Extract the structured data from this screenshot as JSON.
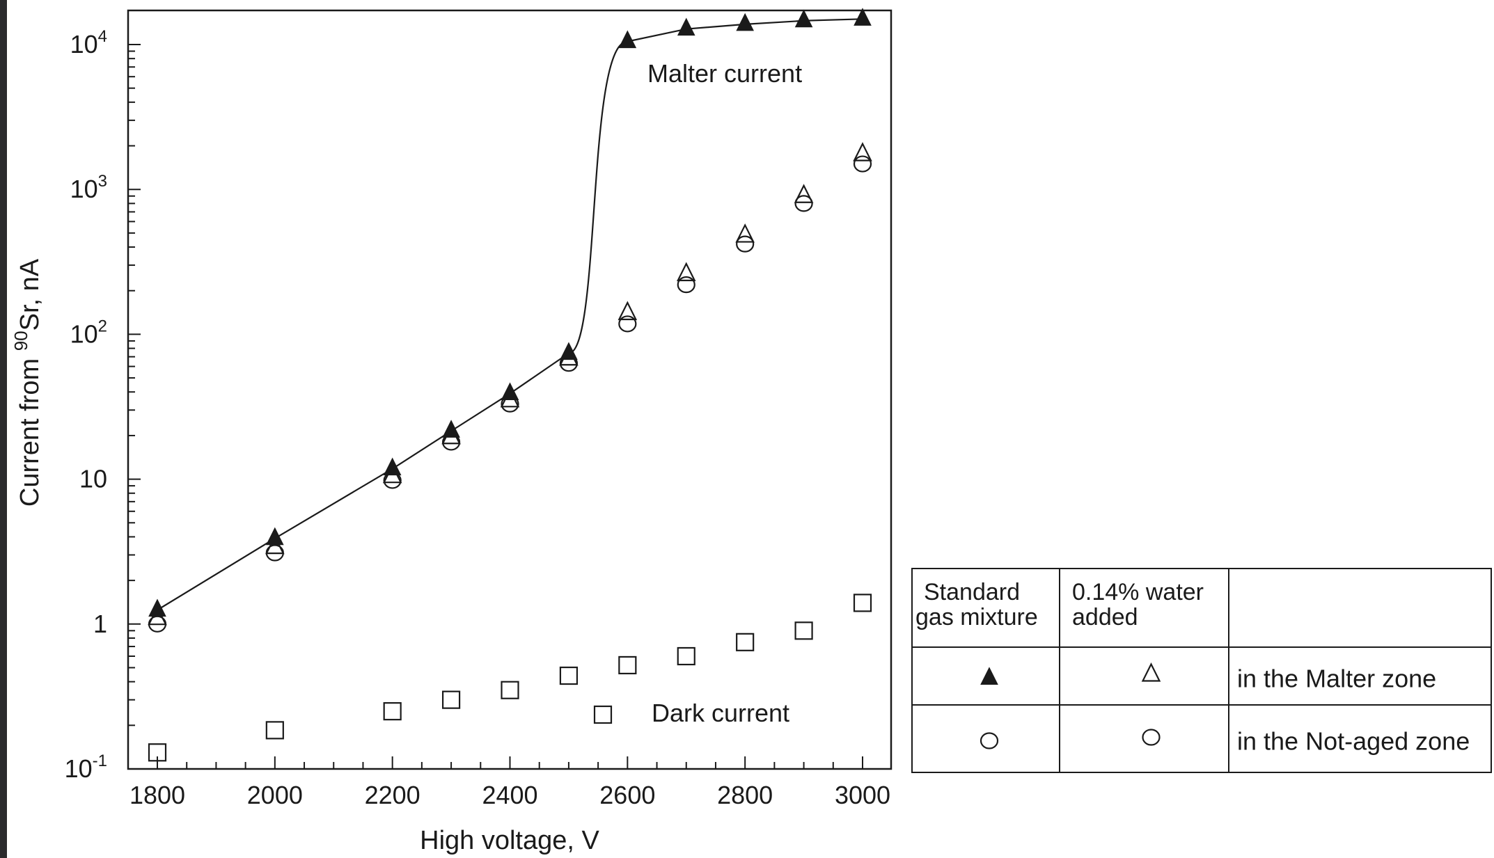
{
  "chart_data": {
    "type": "scatter",
    "xlabel": "High voltage, V",
    "ylabel_prefix": "Current from ",
    "ylabel_sup": "90",
    "ylabel_suffix": "Sr, nA",
    "y_scale": "log",
    "xlim": [
      1750,
      3050
    ],
    "ylim": [
      0.1,
      16000
    ],
    "x_ticks": [
      {
        "value": 1800,
        "label": "1800"
      },
      {
        "value": 2000,
        "label": "2000"
      },
      {
        "value": 2200,
        "label": "2200"
      },
      {
        "value": 2400,
        "label": "2400"
      },
      {
        "value": 2600,
        "label": "2600"
      },
      {
        "value": 2800,
        "label": "2800"
      },
      {
        "value": 3000,
        "label": "3000"
      }
    ],
    "y_ticks": [
      {
        "value": 0.1,
        "base": "10",
        "sup": "-1"
      },
      {
        "value": 1,
        "base": "1",
        "sup": ""
      },
      {
        "value": 10,
        "base": "10",
        "sup": ""
      },
      {
        "value": 100,
        "base": "10",
        "sup": "2"
      },
      {
        "value": 1000,
        "base": "10",
        "sup": "3"
      },
      {
        "value": 10000,
        "base": "10",
        "sup": "4"
      }
    ],
    "series": [
      {
        "marker": "filled-triangle",
        "connected": true,
        "x": [
          1800,
          2000,
          2200,
          2300,
          2400,
          2500,
          2600,
          2700,
          2800,
          2900,
          3000
        ],
        "y": [
          1.25,
          3.9,
          11.8,
          21.5,
          39,
          74,
          10500,
          12800,
          13800,
          14600,
          15000
        ]
      },
      {
        "marker": "open-triangle",
        "connected": false,
        "x": [
          1800,
          2000,
          2200,
          2300,
          2400,
          2500,
          2600,
          2700,
          2800,
          2900,
          3000
        ],
        "y": [
          1.1,
          3.4,
          10.5,
          19.5,
          35,
          68,
          140,
          260,
          480,
          900,
          1750
        ]
      },
      {
        "marker": "open-circle",
        "connected": false,
        "x": [
          1800,
          2000,
          2200,
          2300,
          2400,
          2500,
          2600,
          2700,
          2800,
          2900,
          3000
        ],
        "y": [
          1.0,
          3.1,
          9.8,
          18,
          33,
          63,
          118,
          220,
          420,
          800,
          1500
        ]
      },
      {
        "marker": "open-square",
        "connected": false,
        "x": [
          1800,
          2000,
          2200,
          2300,
          2400,
          2500,
          2600,
          2700,
          2800,
          2900,
          3000
        ],
        "y": [
          0.13,
          0.185,
          0.25,
          0.3,
          0.35,
          0.44,
          0.52,
          0.6,
          0.75,
          0.9,
          1.4
        ]
      }
    ],
    "annotations": [
      {
        "text": "Malter current"
      },
      {
        "text": "Dark current"
      }
    ],
    "legend": {
      "position": "right",
      "header": [
        "Standard\ngas mixture",
        "0.14% water\nadded",
        ""
      ],
      "rows": [
        {
          "markers": [
            "filled-triangle",
            "open-triangle"
          ],
          "label": "in the Malter zone"
        },
        {
          "markers": [
            "open-circle",
            "open-circle"
          ],
          "label": "in the Not-aged zone"
        }
      ]
    },
    "grid": false
  },
  "colors": {
    "background": "#2b2b2d",
    "plot_background": "#ffffff",
    "ink": "#1a1a1a"
  }
}
